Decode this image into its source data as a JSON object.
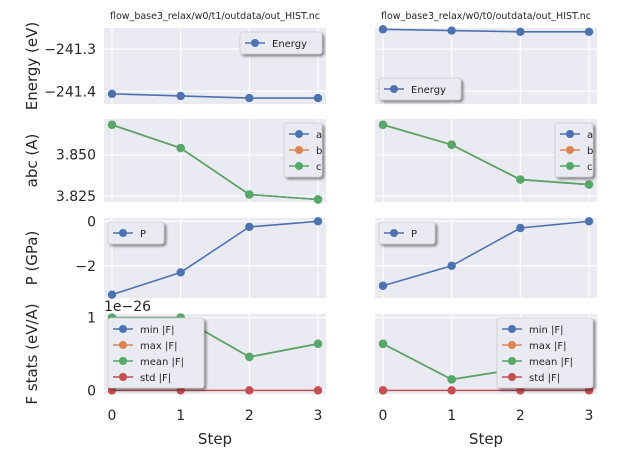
{
  "chart_data": {
    "type": "line",
    "x_label": "Step",
    "x_ticks": [
      0,
      1,
      2,
      3
    ],
    "colors": {
      "blue": "#4c72b0",
      "orange": "#dd8452",
      "green": "#55a868",
      "red": "#c44e52",
      "panel_bg": "#eaeaf2"
    },
    "columns": [
      {
        "title": "flow_base3_relax/w0/t1/outdata/out_HIST.nc"
      },
      {
        "title": "flow_base3_relax/w0/t0/outdata/out_HIST.nc"
      }
    ],
    "rows": [
      {
        "id": "energy",
        "ylabel": "Energy (eV)",
        "y_ticks": [
          -241.3,
          -241.4
        ],
        "y_tick_labels": [
          "−241.3",
          "−241.4"
        ],
        "ylim": [
          -241.43,
          -241.25
        ],
        "offset_text": "",
        "legend_position": [
          [
            "upper right"
          ],
          [
            "lower left"
          ]
        ],
        "series": [
          [
            {
              "name": "Energy",
              "color": "#4c72b0",
              "values": [
                -241.406,
                -241.411,
                -241.416,
                -241.416
              ]
            }
          ],
          [
            {
              "name": "Energy",
              "color": "#4c72b0",
              "values": [
                -241.253,
                -241.256,
                -241.259,
                -241.259
              ]
            }
          ]
        ]
      },
      {
        "id": "abc",
        "ylabel": "abc (A)",
        "y_ticks": [
          3.85,
          3.825
        ],
        "y_tick_labels": [
          "3.850",
          "3.825"
        ],
        "ylim": [
          3.8215,
          3.8715
        ],
        "offset_text": "",
        "legend_position": [
          [
            "upper right"
          ],
          [
            "upper right"
          ]
        ],
        "series": [
          [
            {
              "name": "a",
              "color": "#4c72b0",
              "values": [
                3.868,
                3.854,
                3.826,
                3.823
              ]
            },
            {
              "name": "b",
              "color": "#dd8452",
              "values": [
                3.868,
                3.854,
                3.826,
                3.823
              ]
            },
            {
              "name": "c",
              "color": "#55a868",
              "values": [
                3.868,
                3.854,
                3.826,
                3.823
              ]
            }
          ],
          [
            {
              "name": "a",
              "color": "#4c72b0",
              "values": [
                3.868,
                3.856,
                3.835,
                3.832
              ]
            },
            {
              "name": "b",
              "color": "#dd8452",
              "values": [
                3.868,
                3.856,
                3.835,
                3.832
              ]
            },
            {
              "name": "c",
              "color": "#55a868",
              "values": [
                3.868,
                3.856,
                3.835,
                3.832
              ]
            }
          ]
        ]
      },
      {
        "id": "pressure",
        "ylabel": "P (GPa)",
        "y_ticks": [
          0,
          -2
        ],
        "y_tick_labels": [
          "0",
          "−2"
        ],
        "ylim": [
          -3.45,
          0.15
        ],
        "offset_text": "",
        "legend_position": [
          [
            "upper left"
          ],
          [
            "upper left"
          ]
        ],
        "series": [
          [
            {
              "name": "P",
              "color": "#4c72b0",
              "values": [
                -3.3,
                -2.3,
                -0.25,
                0.0
              ]
            }
          ],
          [
            {
              "name": "P",
              "color": "#4c72b0",
              "values": [
                -2.9,
                -2.0,
                -0.3,
                0.0
              ]
            }
          ]
        ]
      },
      {
        "id": "fstats",
        "ylabel": "F stats (eV/A)",
        "y_ticks": [
          1,
          0
        ],
        "y_tick_labels": [
          "1",
          "0"
        ],
        "ylim": [
          -0.05,
          1.05
        ],
        "offset_text": "1e−26",
        "legend_position": [
          [
            "upper left"
          ],
          [
            "upper right"
          ]
        ],
        "series": [
          [
            {
              "name": "min |F|",
              "color": "#4c72b0",
              "values": [
                1.0,
                1.0,
                0.46,
                0.64
              ]
            },
            {
              "name": "max |F|",
              "color": "#dd8452",
              "values": [
                1.0,
                1.0,
                0.46,
                0.64
              ]
            },
            {
              "name": "mean |F|",
              "color": "#55a868",
              "values": [
                1.0,
                1.0,
                0.46,
                0.64
              ]
            },
            {
              "name": "std |F|",
              "color": "#c44e52",
              "values": [
                0,
                0,
                0,
                0
              ]
            }
          ],
          [
            {
              "name": "min |F|",
              "color": "#4c72b0",
              "values": [
                0.64,
                0.15,
                0.3,
                0.3
              ]
            },
            {
              "name": "max |F|",
              "color": "#dd8452",
              "values": [
                0.64,
                0.15,
                0.3,
                0.3
              ]
            },
            {
              "name": "mean |F|",
              "color": "#55a868",
              "values": [
                0.64,
                0.15,
                0.3,
                0.3
              ]
            },
            {
              "name": "std |F|",
              "color": "#c44e52",
              "values": [
                0,
                0,
                0,
                0
              ]
            }
          ]
        ]
      }
    ]
  }
}
